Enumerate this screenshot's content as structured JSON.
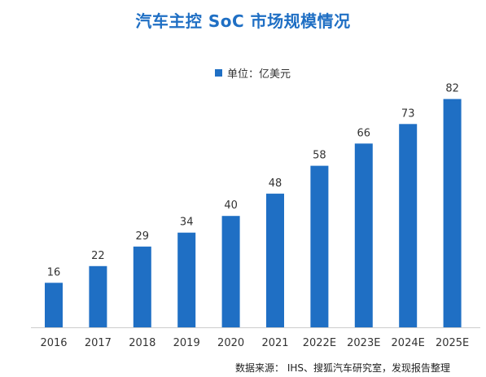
{
  "title": "汽车主控 SoC 市场规模情况",
  "source": "数据来源： IHS、搜狐汽车研究室，发现报告整理",
  "colors": {
    "title": "#1f6fc4",
    "bar": "#1f6fc4",
    "axis": "#cccccc",
    "label": "#333333"
  },
  "chart_data": {
    "type": "bar",
    "title": "汽车主控 SoC 市场规模情况",
    "categories": [
      "2016",
      "2017",
      "2018",
      "2019",
      "2020",
      "2021",
      "2022E",
      "2023E",
      "2024E",
      "2025E"
    ],
    "series": [
      {
        "name": "单位：亿美元",
        "values": [
          16,
          22,
          29,
          34,
          40,
          48,
          58,
          66,
          73,
          82
        ]
      }
    ],
    "xlabel": "",
    "ylabel": "",
    "ylim": [
      0,
      90
    ],
    "grid": false,
    "legend": "top-center",
    "data_labels": true
  }
}
